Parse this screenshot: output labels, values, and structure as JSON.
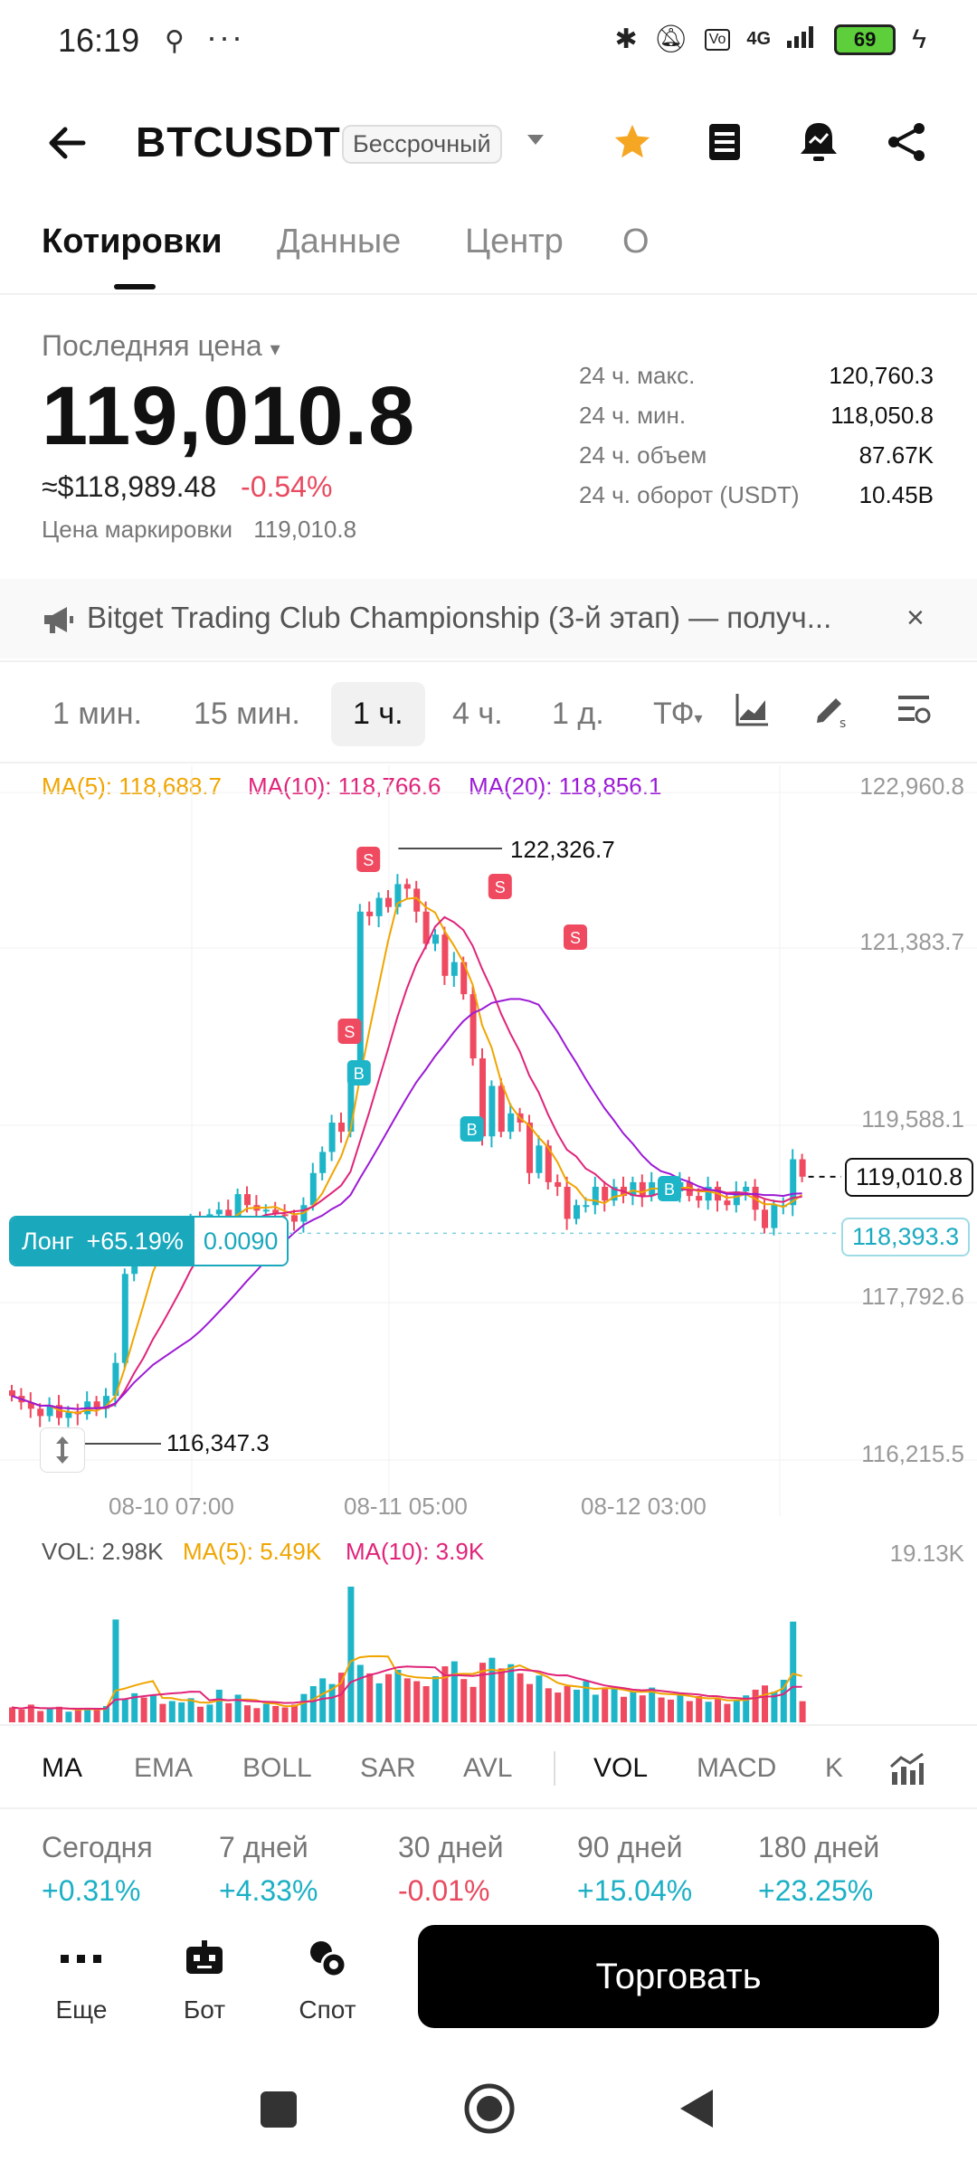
{
  "status_bar": {
    "time": "16:19",
    "dots": "···",
    "network": "4G",
    "battery": "69"
  },
  "header": {
    "symbol": "BTCUSDT",
    "contract_type": "Бессрочный"
  },
  "tabs": [
    {
      "label": "Котировки"
    },
    {
      "label": "Данные"
    },
    {
      "label": "Центр"
    },
    {
      "label": "О"
    }
  ],
  "price": {
    "last_label": "Последняя цена",
    "last_price": "119,010.8",
    "approx_usd": "≈$118,989.48",
    "change": "-0.54%",
    "mark_label": "Цена маркировки",
    "mark_value": "119,010.8",
    "stats": [
      {
        "label": "24 ч. макс.",
        "value": "120,760.3"
      },
      {
        "label": "24 ч. мин.",
        "value": "118,050.8"
      },
      {
        "label": "24 ч. объем",
        "value": "87.67K"
      },
      {
        "label": "24 ч. оборот (USDT)",
        "value": "10.45B"
      }
    ]
  },
  "announcement": {
    "text": "Bitget Trading Club Championship (3-й этап) — получ..."
  },
  "timeframes": [
    {
      "label": "1 мин."
    },
    {
      "label": "15 мин."
    },
    {
      "label": "1 ч."
    },
    {
      "label": "4 ч."
    },
    {
      "label": "1 д."
    },
    {
      "label": "ТФ"
    }
  ],
  "chart_data": {
    "type": "candlestick",
    "ma_legend": [
      {
        "label": "MA(5): 118,688.7",
        "color": "#f0a500"
      },
      {
        "label": "MA(10): 118,766.6",
        "color": "#e0247a"
      },
      {
        "label": "MA(20): 118,856.1",
        "color": "#9c1ad6"
      }
    ],
    "y_ticks": [
      "122,960.8",
      "121,383.7",
      "119,588.1",
      "117,792.6",
      "116,215.5"
    ],
    "x_ticks": [
      "08-10 07:00",
      "08-11 05:00",
      "08-12 03:00"
    ],
    "high_annotation": "122,326.7",
    "low_annotation": "116,347.3",
    "current_price_tag": "119,010.8",
    "position_price_tag": "118,393.3",
    "position": {
      "side": "Лонг",
      "pnl": "+65.19%",
      "size": "0.0090"
    },
    "markers": [
      "S",
      "S",
      "S",
      "S",
      "B",
      "B",
      "B"
    ],
    "colors": {
      "up": "#1eb5c8",
      "down": "#ef4a60"
    },
    "closes": [
      116620,
      116550,
      116480,
      116400,
      116520,
      116380,
      116450,
      116420,
      116560,
      116480,
      116620,
      116980,
      117950,
      118310,
      118200,
      118400,
      118170,
      118280,
      118450,
      118520,
      118350,
      118600,
      118650,
      118550,
      118820,
      118700,
      118640,
      118650,
      118600,
      118590,
      118520,
      118700,
      119050,
      119280,
      119600,
      119500,
      120150,
      121900,
      121850,
      122050,
      121950,
      122200,
      122150,
      121900,
      121550,
      121650,
      121200,
      121350,
      121000,
      120300,
      119450,
      120000,
      119500,
      119700,
      119600,
      119050,
      119350,
      118950,
      118900,
      118550,
      118700,
      118700,
      118900,
      118750,
      118900,
      118800,
      118950,
      118800,
      118950,
      118900,
      118850,
      118950,
      118800,
      118750,
      118900,
      118750,
      118700,
      118850,
      118900,
      118650,
      118450,
      118700,
      118700,
      119200,
      119010
    ],
    "volume": {
      "legend": [
        {
          "label": "VOL: 2.98K",
          "color": "#555555"
        },
        {
          "label": "MA(5): 5.49K",
          "color": "#f0a500"
        },
        {
          "label": "MA(10): 3.9K",
          "color": "#e0247a"
        }
      ],
      "max_label": "19.13K",
      "values": [
        2.1,
        1.8,
        2.5,
        1.6,
        1.9,
        2.2,
        1.5,
        1.7,
        2.0,
        1.8,
        2.3,
        14.5,
        3.2,
        4.1,
        3.5,
        3.8,
        2.6,
        3.0,
        2.8,
        3.4,
        2.2,
        2.5,
        4.6,
        2.7,
        3.9,
        2.4,
        2.0,
        2.6,
        2.3,
        2.1,
        2.5,
        4.0,
        5.1,
        6.2,
        5.4,
        7.0,
        19.13,
        8.1,
        6.9,
        5.5,
        6.8,
        7.4,
        6.2,
        5.8,
        5.1,
        6.5,
        7.9,
        8.6,
        6.1,
        5.0,
        8.4,
        9.1,
        7.6,
        8.2,
        6.9,
        5.4,
        6.6,
        4.8,
        4.2,
        5.1,
        4.6,
        5.8,
        3.9,
        4.7,
        5.0,
        3.6,
        4.4,
        3.8,
        4.9,
        3.5,
        3.2,
        4.1,
        3.0,
        3.7,
        2.9,
        3.3,
        2.6,
        3.1,
        3.8,
        4.6,
        5.2,
        4.3,
        6.0,
        14.2,
        2.98
      ]
    }
  },
  "indicators": [
    {
      "label": "MA"
    },
    {
      "label": "EMA"
    },
    {
      "label": "BOLL"
    },
    {
      "label": "SAR"
    },
    {
      "label": "AVL"
    },
    {
      "label": "VOL"
    },
    {
      "label": "MACD"
    },
    {
      "label": "K"
    }
  ],
  "performance": [
    {
      "label": "Сегодня",
      "value": "+0.31%"
    },
    {
      "label": "7 дней",
      "value": "+4.33%"
    },
    {
      "label": "30 дней",
      "value": "-0.01%"
    },
    {
      "label": "90 дней",
      "value": "+15.04%"
    },
    {
      "label": "180 дней",
      "value": "+23.25%"
    }
  ],
  "bottom_actions": [
    {
      "label": "Еще"
    },
    {
      "label": "Бот"
    },
    {
      "label": "Спот"
    }
  ],
  "trade_button": "Торговать"
}
